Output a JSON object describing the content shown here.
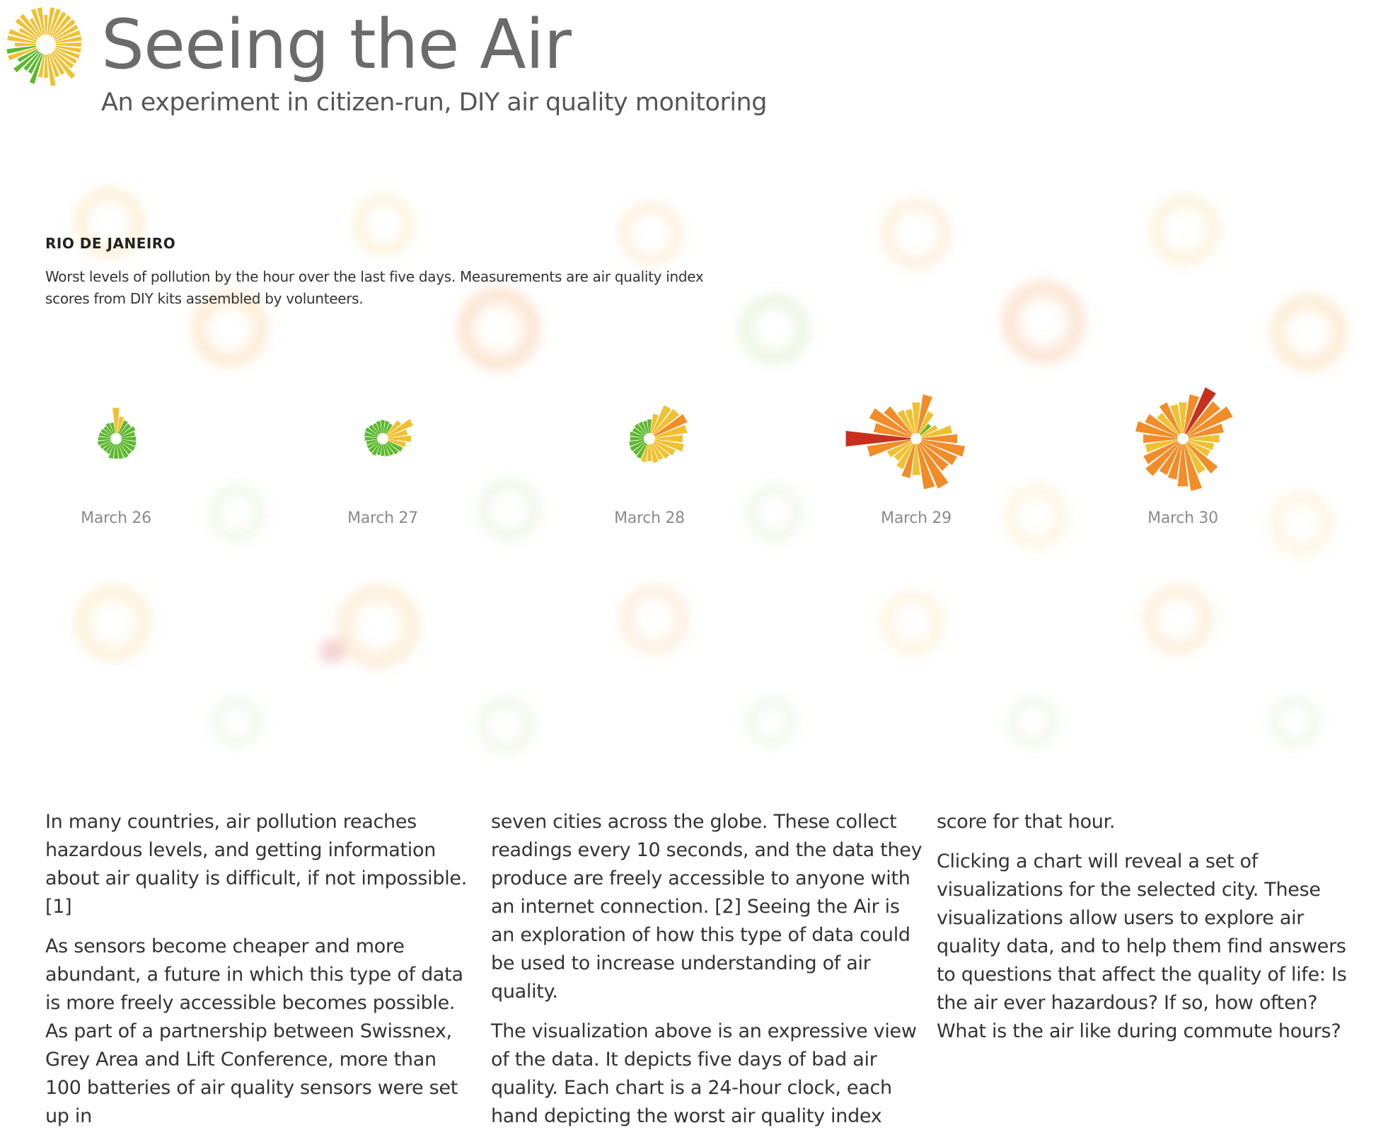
{
  "header": {
    "title": "Seeing the Air",
    "subtitle": "An experiment in citizen-run, DIY air quality monitoring"
  },
  "city": {
    "name": "RIO DE JANEIRO",
    "description": "Worst levels of pollution by the hour over the last five days. Measurements are air quality index scores from DIY kits assembled by volunteers."
  },
  "colors": {
    "good": "#5cb82e",
    "moderate": "#f0c030",
    "sensitive": "#f28c28",
    "unhealthy": "#c6301c",
    "title": "#6b6b6b"
  },
  "chart_data": {
    "type": "radial-bar",
    "series": [
      {
        "label": "March 26",
        "values": [
          78,
          52,
          45,
          42,
          48,
          42,
          44,
          46,
          47,
          45,
          48,
          46,
          44,
          45,
          34,
          34,
          36,
          40,
          38,
          36,
          34,
          32,
          36,
          33
        ]
      },
      {
        "label": "March 27",
        "values": [
          40,
          38,
          34,
          55,
          85,
          60,
          70,
          55,
          50,
          45,
          40,
          38,
          36,
          34,
          40,
          38,
          36,
          34,
          38,
          40,
          42,
          38,
          35,
          38
        ]
      },
      {
        "label": "March 28",
        "values": [
          42,
          60,
          95,
          100,
          110,
          100,
          85,
          90,
          70,
          62,
          55,
          58,
          52,
          56,
          50,
          47,
          48,
          46,
          42,
          44,
          40,
          42,
          40,
          38
        ]
      },
      {
        "label": "March 29",
        "values": [
          95,
          120,
          75,
          42,
          55,
          95,
          110,
          135,
          120,
          110,
          150,
          140,
          95,
          105,
          85,
          70,
          80,
          135,
          200,
          115,
          140,
          110,
          80,
          75
        ]
      },
      {
        "label": "March 30",
        "values": [
          95,
          120,
          155,
          130,
          150,
          110,
          95,
          80,
          75,
          120,
          100,
          145,
          130,
          110,
          105,
          130,
          115,
          100,
          105,
          130,
          110,
          85,
          105,
          90
        ]
      }
    ]
  },
  "body": {
    "col1": {
      "p1": "In many countries, air pollution reaches hazardous levels, and getting information about air quality is difficult, if not impossible. [1]",
      "p2": "As sensors become cheaper and more abundant, a future in which this type of data is more freely accessible becomes possible. As part of a partnership between Swissnex, Grey Area and Lift Conference, more than 100 batteries of air quality sensors were set up in"
    },
    "col2": {
      "p1": "seven cities across the globe. These collect readings every 10 seconds, and the data they produce are freely accessible to anyone with an internet connection. [2] Seeing the Air is an exploration of how this type of data could be used to increase understanding of air quality.",
      "p2": "The visualization above is an expressive view of the data. It depicts five days of bad air quality. Each chart is a 24-hour clock, each hand depicting the worst air quality index"
    },
    "col3": {
      "p1": "score for that hour.",
      "p2": "Clicking a chart will reveal a set of visualizations for the selected city. These visualizations allow users to explore air quality data, and to help them find answers to questions that affect the quality of life: Is the air ever hazardous? If so, how often? What is the air like during commute hours?"
    }
  }
}
